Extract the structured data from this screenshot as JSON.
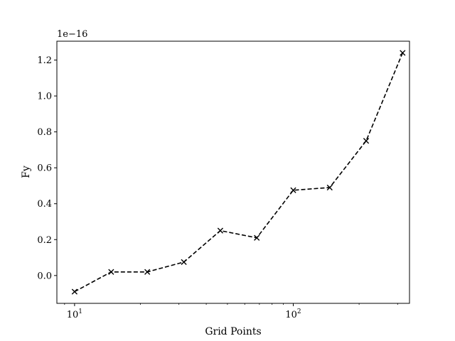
{
  "chart_data": {
    "type": "line",
    "xlabel": "Grid Points",
    "ylabel": "Fy",
    "x_scale": "log",
    "y_offset_text": "1e−16",
    "y_multiplier": 1e-16,
    "xlim": [
      8.3,
      340
    ],
    "ylim": [
      -0.155,
      1.305
    ],
    "x_ticks": [
      {
        "value": 10,
        "base": "10",
        "exp": "1"
      },
      {
        "value": 100,
        "base": "10",
        "exp": "2"
      }
    ],
    "y_ticks": [
      {
        "value": 0.0,
        "label": "0.0"
      },
      {
        "value": 0.2,
        "label": "0.2"
      },
      {
        "value": 0.4,
        "label": "0.4"
      },
      {
        "value": 0.6,
        "label": "0.6"
      },
      {
        "value": 0.8,
        "label": "0.8"
      },
      {
        "value": 1.0,
        "label": "1.0"
      },
      {
        "value": 1.2,
        "label": "1.2"
      }
    ],
    "grid": false,
    "series": [
      {
        "line_style": "dashed",
        "marker": "x",
        "color": "#000000",
        "x": [
          10,
          14.7,
          21.5,
          31.6,
          46.4,
          68.1,
          100,
          146.8,
          215.4,
          316.2
        ],
        "y": [
          -0.09,
          0.02,
          0.02,
          0.075,
          0.25,
          0.21,
          0.475,
          0.49,
          0.75,
          1.24
        ]
      }
    ]
  }
}
